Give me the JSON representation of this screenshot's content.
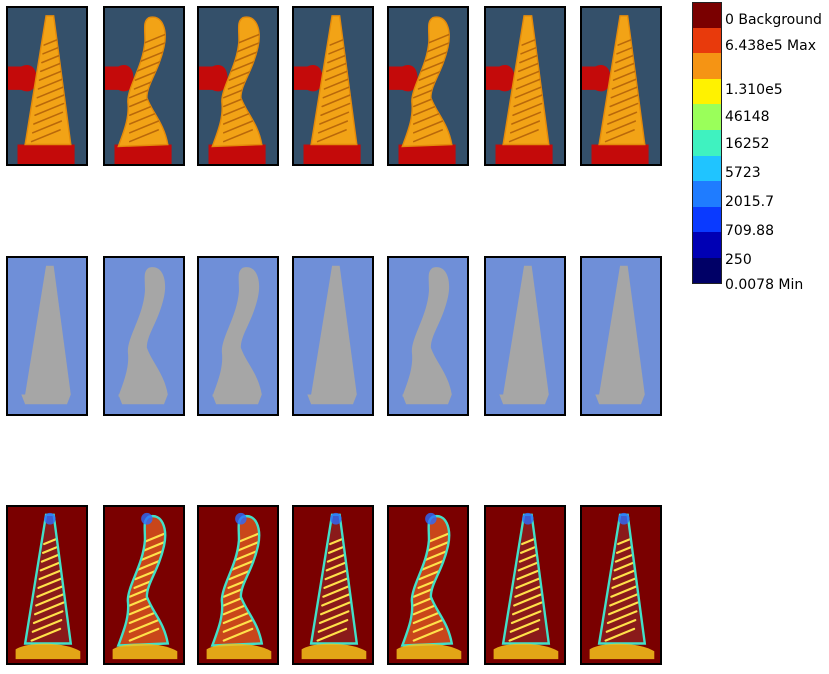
{
  "rows": [
    {
      "name": "photo-row",
      "kind": "photo",
      "count": 7,
      "shapes": [
        "straight",
        "curved",
        "curved",
        "straight",
        "curved",
        "straight",
        "straight"
      ]
    },
    {
      "name": "segmentation-row",
      "kind": "segmentation",
      "count": 7,
      "shapes": [
        "straight",
        "curved",
        "curved",
        "straight",
        "curved",
        "straight",
        "straight"
      ]
    },
    {
      "name": "heatmap-row",
      "kind": "heatmap",
      "count": 7,
      "shapes": [
        "straight",
        "curved",
        "curved",
        "straight",
        "curved",
        "straight",
        "straight"
      ]
    }
  ],
  "legend": {
    "items": [
      {
        "label": "0 Background",
        "color": "#7a0000"
      },
      {
        "label": "6.438e5 Max",
        "color": "#e83a0c"
      },
      {
        "label": "",
        "color": "#f59414"
      },
      {
        "label": "1.310e5",
        "color": "#fff200"
      },
      {
        "label": "46148",
        "color": "#9aff5a"
      },
      {
        "label": "16252",
        "color": "#3ff2c0"
      },
      {
        "label": "5723",
        "color": "#20c4ff"
      },
      {
        "label": "2015.7",
        "color": "#1f7cff"
      },
      {
        "label": "709.88",
        "color": "#0a3aff"
      },
      {
        "label": "250",
        "color": "#0000b4"
      },
      {
        "label": "0.0078 Min",
        "color": "#000066"
      }
    ]
  },
  "colors": {
    "photo_bg": "#34506a",
    "photo_part": "#f2a316",
    "photo_fixture": "#c40a0a",
    "seg_bg": "#6f8fd8",
    "seg_part": "#a6a6a6",
    "heat_bg": "#7a0000",
    "heat_edge": "#42e0c8",
    "heat_fill": "#f5c21a",
    "heat_hatch": "#ffe14a",
    "heat_blue": "#2a6cff"
  }
}
